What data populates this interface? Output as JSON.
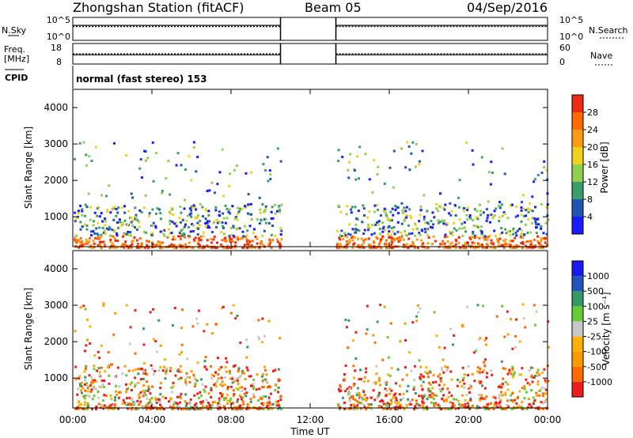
{
  "header": {
    "title": "Zhongshan Station (fitACF)",
    "beam": "Beam 05",
    "date": "04/Sep/2016"
  },
  "params": {
    "nsky_label": "N.Sky",
    "nsearch_label": "N.Search",
    "freq_label_1": "Freq.",
    "freq_label_2": "[MHz]",
    "nave_label": "Nave",
    "cpid_label": "CPID",
    "cpid_text": "normal (fast stereo) 153",
    "noise_left_ticks": [
      "10^5",
      "10^0"
    ],
    "noise_right_ticks": [
      "10^5",
      "10^0"
    ],
    "freq_left_ticks": [
      "18",
      "8"
    ],
    "freq_right_ticks": [
      "60",
      "0"
    ]
  },
  "colors": {
    "power_scale": [
      "#1a1aff",
      "#2255b3",
      "#3a9e6a",
      "#8fd14f",
      "#f0d21e",
      "#ff9a14",
      "#ff6a00",
      "#ee2a10"
    ],
    "velocity_scale": [
      "#ee1c1c",
      "#ff6a00",
      "#ff9900",
      "#ffb000",
      "#c8c8c8",
      "#66cc33",
      "#339966",
      "#2255bb",
      "#1a1aee"
    ]
  },
  "chart_data": [
    {
      "type": "heatmap",
      "panel": "power",
      "ylabel": "Slant Range [km]",
      "ylim": [
        180,
        4500
      ],
      "yticks": [
        "1000",
        "2000",
        "3000",
        "4000"
      ],
      "colorbar_label": "Power [dB]",
      "colorbar_ticks": [
        "4",
        "8",
        "12",
        "16",
        "20",
        "24",
        "28"
      ],
      "colorbar_range": [
        0,
        32
      ]
    },
    {
      "type": "heatmap",
      "panel": "velocity",
      "ylabel": "Slant Range [km]",
      "ylim": [
        180,
        4500
      ],
      "yticks": [
        "1000",
        "2000",
        "3000",
        "4000"
      ],
      "colorbar_label": "Velocity [m s⁻¹]",
      "colorbar_ticks": [
        "-1000",
        "-500",
        "-100",
        "-25",
        "25",
        "100",
        "500",
        "1000"
      ]
    }
  ],
  "xaxis": {
    "label": "Time UT",
    "ticks": [
      "00:00",
      "04:00",
      "08:00",
      "12:00",
      "16:00",
      "20:00",
      "00:00"
    ],
    "range_hours": [
      0,
      24
    ],
    "data_gap_hours": [
      10.5,
      13.3
    ]
  }
}
